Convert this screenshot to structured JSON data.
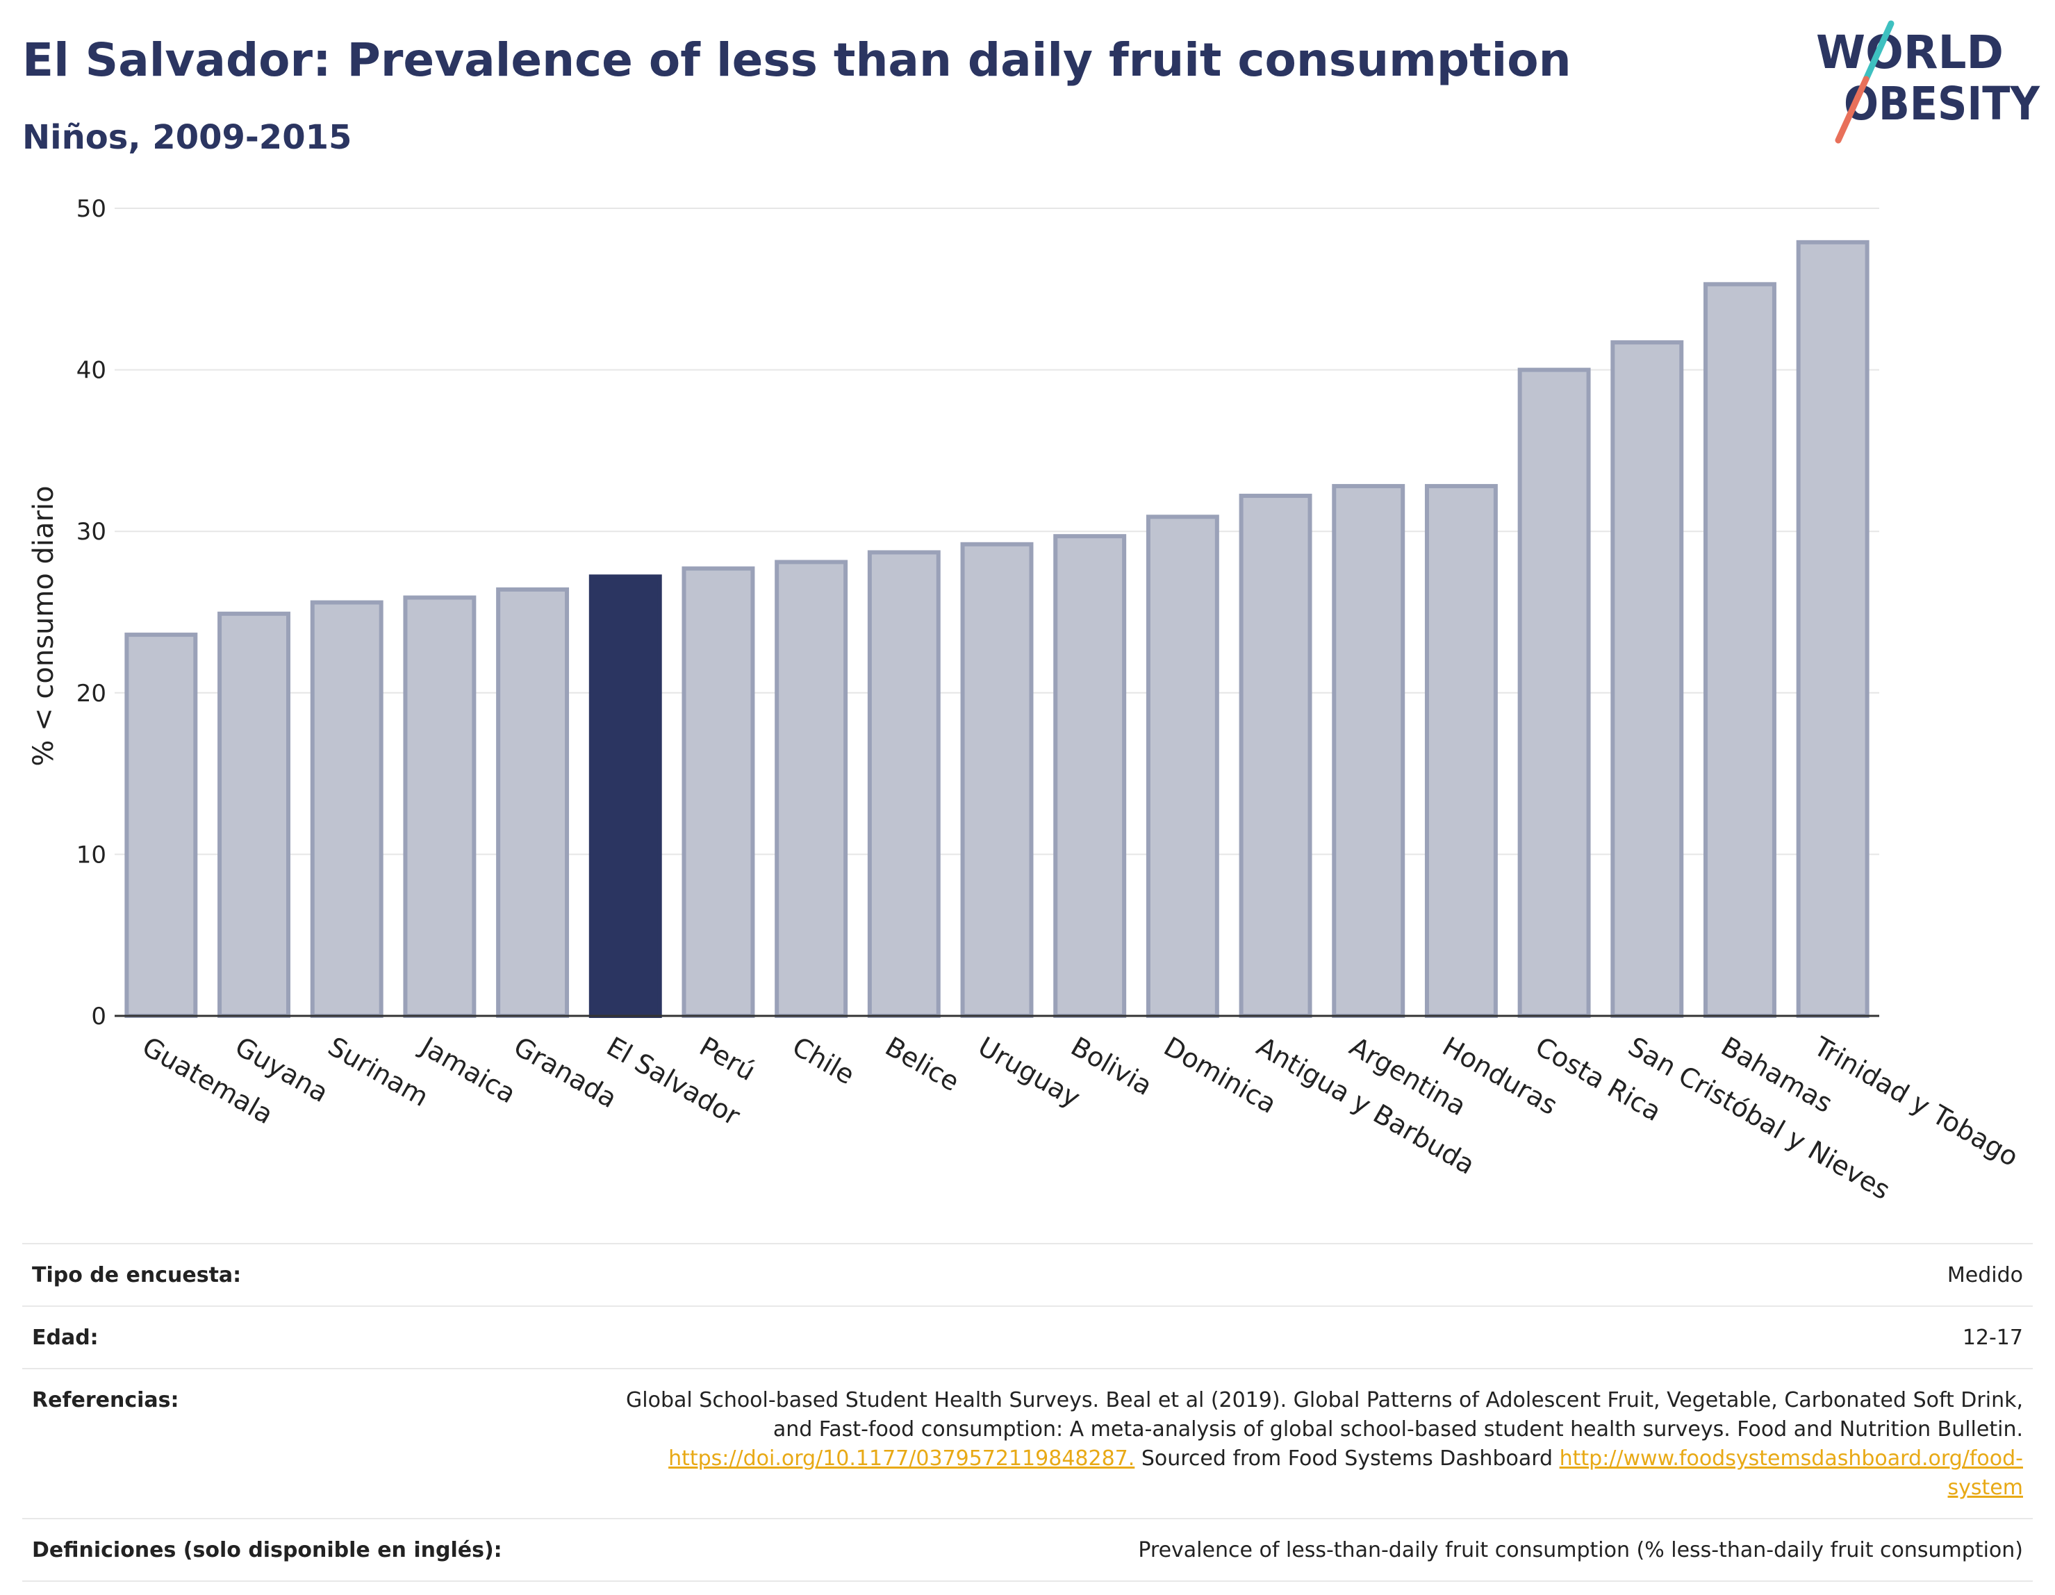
{
  "header": {
    "title": "El Salvador: Prevalence of less than daily fruit consumption",
    "subtitle": "Niños, 2009-2015"
  },
  "logo": {
    "line1": "WORLD",
    "line2": "OBESITY",
    "colors": {
      "text": "#2b3561",
      "slash_top": "#3ec0c0",
      "slash_bottom": "#e8705a"
    }
  },
  "colors": {
    "bar": "#bfc3d0",
    "bar_edge": "#9aa1b8",
    "highlight": "#2b3561",
    "grid": "#e6e6e6",
    "axis": "#333333",
    "link": "#e8a915"
  },
  "chart_data": {
    "type": "bar",
    "title": "El Salvador: Prevalence of less than daily fruit consumption",
    "subtitle": "Niños, 2009-2015",
    "xlabel": "",
    "ylabel": "% < consumo diario",
    "ylim": [
      0,
      50
    ],
    "yticks": [
      0,
      10,
      20,
      30,
      40,
      50
    ],
    "grid": true,
    "highlight": "El Salvador",
    "categories": [
      "Guatemala",
      "Guyana",
      "Surinam",
      "Jamaica",
      "Granada",
      "El Salvador",
      "Perú",
      "Chile",
      "Belice",
      "Uruguay",
      "Bolivia",
      "Dominica",
      "Antigua y Barbuda",
      "Argentina",
      "Honduras",
      "Costa Rica",
      "San Cristóbal y Nieves",
      "Bahamas",
      "Trinidad y Tobago"
    ],
    "values": [
      23.6,
      24.9,
      25.6,
      25.9,
      26.4,
      27.2,
      27.7,
      28.1,
      28.7,
      29.2,
      29.7,
      30.9,
      32.2,
      32.8,
      32.8,
      40.0,
      41.7,
      45.3,
      47.9
    ]
  },
  "footer": {
    "rows": [
      {
        "key": "Tipo de encuesta:",
        "value": "Medido"
      },
      {
        "key": "Edad:",
        "value": "12-17"
      }
    ],
    "references": {
      "key": "Referencias:",
      "line1": "Global School-based Student Health Surveys. Beal et al (2019). Global Patterns of Adolescent Fruit, Vegetable, Carbonated Soft Drink,",
      "line2": "and Fast-food consumption: A meta-analysis of global school-based student health surveys. Food and Nutrition Bulletin.",
      "link1": "https://doi.org/10.1177/0379572119848287.",
      "mid_text": " Sourced from Food Systems Dashboard ",
      "link2a": "http://www.foodsystemsdashboard.org/food-",
      "link2b": "system"
    },
    "definitions": {
      "key": "Definiciones (solo disponible en inglés):",
      "value": "Prevalence of less-than-daily fruit consumption (% less-than-daily fruit consumption)"
    }
  }
}
